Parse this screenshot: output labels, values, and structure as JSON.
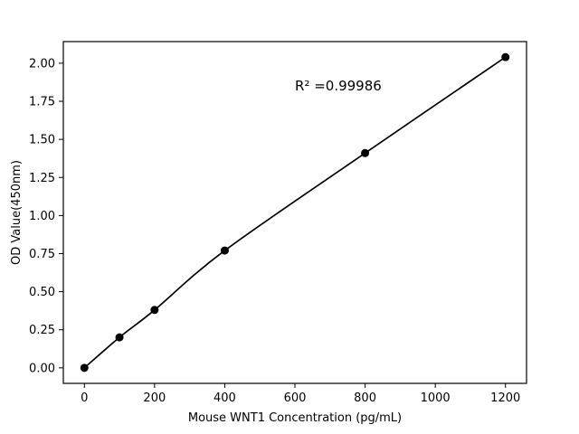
{
  "chart_data": {
    "type": "scatter",
    "x": [
      0,
      100,
      200,
      400,
      800,
      1200
    ],
    "y": [
      0.0,
      0.2,
      0.38,
      0.77,
      1.41,
      2.04
    ],
    "series_note": "standard curve points with fitted line",
    "title": "",
    "xlabel": "Mouse WNT1 Concentration (pg/mL)",
    "ylabel": "OD Value(450nm)",
    "annotation": {
      "text": "R² =0.99986",
      "x": 600,
      "y": 1.82
    },
    "xlim": [
      -60,
      1260
    ],
    "ylim": [
      -0.102,
      2.142
    ],
    "xticks": [
      0,
      200,
      400,
      600,
      800,
      1000,
      1200
    ],
    "yticks": [
      0.0,
      0.25,
      0.5,
      0.75,
      1.0,
      1.25,
      1.5,
      1.75,
      2.0
    ],
    "grid": false,
    "legend": "none",
    "line_color": "#000000",
    "marker_color": "#000000",
    "background": "#ffffff"
  }
}
